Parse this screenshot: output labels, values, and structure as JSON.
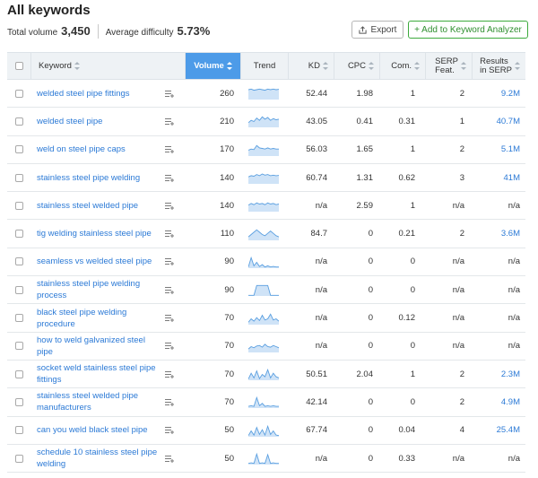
{
  "title": "All keywords",
  "summary": {
    "total_volume_label": "Total volume",
    "total_volume": "3,450",
    "avg_difficulty_label": "Average difficulty",
    "avg_difficulty": "5.73%"
  },
  "buttons": {
    "export": "Export",
    "add_to_analyzer": "+ Add to Keyword Analyzer"
  },
  "icons": {
    "export": "export-icon",
    "add_to_list": "add-to-list-icon",
    "sort": "sort-icon"
  },
  "colors": {
    "accent_blue": "#4d9be8",
    "link_blue": "#2c7ad6",
    "green": "#3daa3d",
    "trend_fill": "#cfe3f7",
    "trend_line": "#5a9fe0"
  },
  "columns": {
    "keyword": "Keyword",
    "volume": "Volume",
    "trend": "Trend",
    "kd": "KD",
    "cpc": "CPC",
    "com": "Com.",
    "serp_1": "SERP",
    "serp_2": "Feat.",
    "results_1": "Results",
    "results_2": "in SERP"
  },
  "rows": [
    {
      "keyword": "welded steel pipe fittings",
      "volume": "260",
      "kd": "52.44",
      "cpc": "1.98",
      "com": "1",
      "serp": "2",
      "results": "9.2M",
      "trend": [
        0.85,
        0.9,
        0.8,
        0.85,
        0.9,
        0.85,
        0.8,
        0.9,
        0.85,
        0.9,
        0.85,
        0.88
      ]
    },
    {
      "keyword": "welded steel pipe",
      "volume": "210",
      "kd": "43.05",
      "cpc": "0.41",
      "com": "0.31",
      "serp": "1",
      "results": "40.7M",
      "trend": [
        0.4,
        0.6,
        0.5,
        0.8,
        0.6,
        0.9,
        0.7,
        0.85,
        0.6,
        0.75,
        0.65,
        0.7
      ]
    },
    {
      "keyword": "weld on steel pipe caps",
      "volume": "170",
      "kd": "56.03",
      "cpc": "1.65",
      "com": "1",
      "serp": "2",
      "results": "5.1M",
      "trend": [
        0.5,
        0.6,
        0.55,
        0.9,
        0.7,
        0.65,
        0.6,
        0.7,
        0.6,
        0.65,
        0.6,
        0.6
      ]
    },
    {
      "keyword": "stainless steel pipe welding",
      "volume": "140",
      "kd": "60.74",
      "cpc": "1.31",
      "com": "0.62",
      "serp": "3",
      "results": "41M",
      "trend": [
        0.6,
        0.7,
        0.65,
        0.8,
        0.7,
        0.85,
        0.75,
        0.8,
        0.7,
        0.75,
        0.7,
        0.72
      ]
    },
    {
      "keyword": "stainless steel welded pipe",
      "volume": "140",
      "kd": "n/a",
      "cpc": "2.59",
      "com": "1",
      "serp": "n/a",
      "results": "n/a",
      "trend": [
        0.55,
        0.7,
        0.6,
        0.75,
        0.65,
        0.7,
        0.6,
        0.75,
        0.65,
        0.7,
        0.6,
        0.65
      ]
    },
    {
      "keyword": "tig welding stainless steel pipe",
      "volume": "110",
      "kd": "84.7",
      "cpc": "0",
      "com": "0.21",
      "serp": "2",
      "results": "3.6M",
      "trend": [
        0.3,
        0.5,
        0.7,
        0.9,
        0.7,
        0.5,
        0.4,
        0.6,
        0.8,
        0.6,
        0.4,
        0.3
      ]
    },
    {
      "keyword": "seamless vs welded steel pipe",
      "volume": "90",
      "kd": "n/a",
      "cpc": "0",
      "com": "0",
      "serp": "n/a",
      "results": "n/a",
      "trend": [
        0.1,
        0.9,
        0.2,
        0.5,
        0.15,
        0.3,
        0.1,
        0.2,
        0.1,
        0.15,
        0.1,
        0.1
      ]
    },
    {
      "keyword": "stainless steel pipe welding process",
      "volume": "90",
      "kd": "n/a",
      "cpc": "0",
      "com": "0",
      "serp": "n/a",
      "results": "n/a",
      "trend": [
        0.05,
        0.05,
        0.05,
        0.9,
        0.9,
        0.9,
        0.9,
        0.9,
        0.05,
        0.05,
        0.05,
        0.05
      ]
    },
    {
      "keyword": "black steel pipe welding procedure",
      "volume": "70",
      "kd": "n/a",
      "cpc": "0",
      "com": "0.12",
      "serp": "n/a",
      "results": "n/a",
      "trend": [
        0.2,
        0.5,
        0.3,
        0.6,
        0.35,
        0.8,
        0.4,
        0.5,
        0.9,
        0.4,
        0.5,
        0.3
      ]
    },
    {
      "keyword": "how to weld galvanized steel pipe",
      "volume": "70",
      "kd": "n/a",
      "cpc": "0",
      "com": "0",
      "serp": "n/a",
      "results": "n/a",
      "trend": [
        0.3,
        0.5,
        0.4,
        0.55,
        0.6,
        0.45,
        0.7,
        0.5,
        0.45,
        0.6,
        0.5,
        0.4
      ]
    },
    {
      "keyword": "socket weld stainless steel pipe fittings",
      "volume": "70",
      "kd": "50.51",
      "cpc": "2.04",
      "com": "1",
      "serp": "2",
      "results": "2.3M",
      "trend": [
        0.1,
        0.6,
        0.2,
        0.8,
        0.15,
        0.5,
        0.3,
        0.9,
        0.2,
        0.6,
        0.3,
        0.2
      ]
    },
    {
      "keyword": "stainless steel welded pipe manufacturers",
      "volume": "70",
      "kd": "42.14",
      "cpc": "0",
      "com": "0",
      "serp": "2",
      "results": "4.9M",
      "trend": [
        0.15,
        0.2,
        0.15,
        0.9,
        0.2,
        0.4,
        0.15,
        0.2,
        0.15,
        0.2,
        0.15,
        0.15
      ]
    },
    {
      "keyword": "can you weld black steel pipe",
      "volume": "50",
      "kd": "67.74",
      "cpc": "0",
      "com": "0.04",
      "serp": "4",
      "results": "25.4M",
      "trend": [
        0.1,
        0.5,
        0.15,
        0.8,
        0.2,
        0.6,
        0.15,
        0.9,
        0.2,
        0.5,
        0.15,
        0.1
      ]
    },
    {
      "keyword": "schedule 10 stainless steel pipe welding",
      "volume": "50",
      "kd": "n/a",
      "cpc": "0",
      "com": "0.33",
      "serp": "n/a",
      "results": "n/a",
      "trend": [
        0.1,
        0.15,
        0.1,
        0.9,
        0.1,
        0.15,
        0.1,
        0.85,
        0.1,
        0.15,
        0.1,
        0.1
      ]
    }
  ]
}
